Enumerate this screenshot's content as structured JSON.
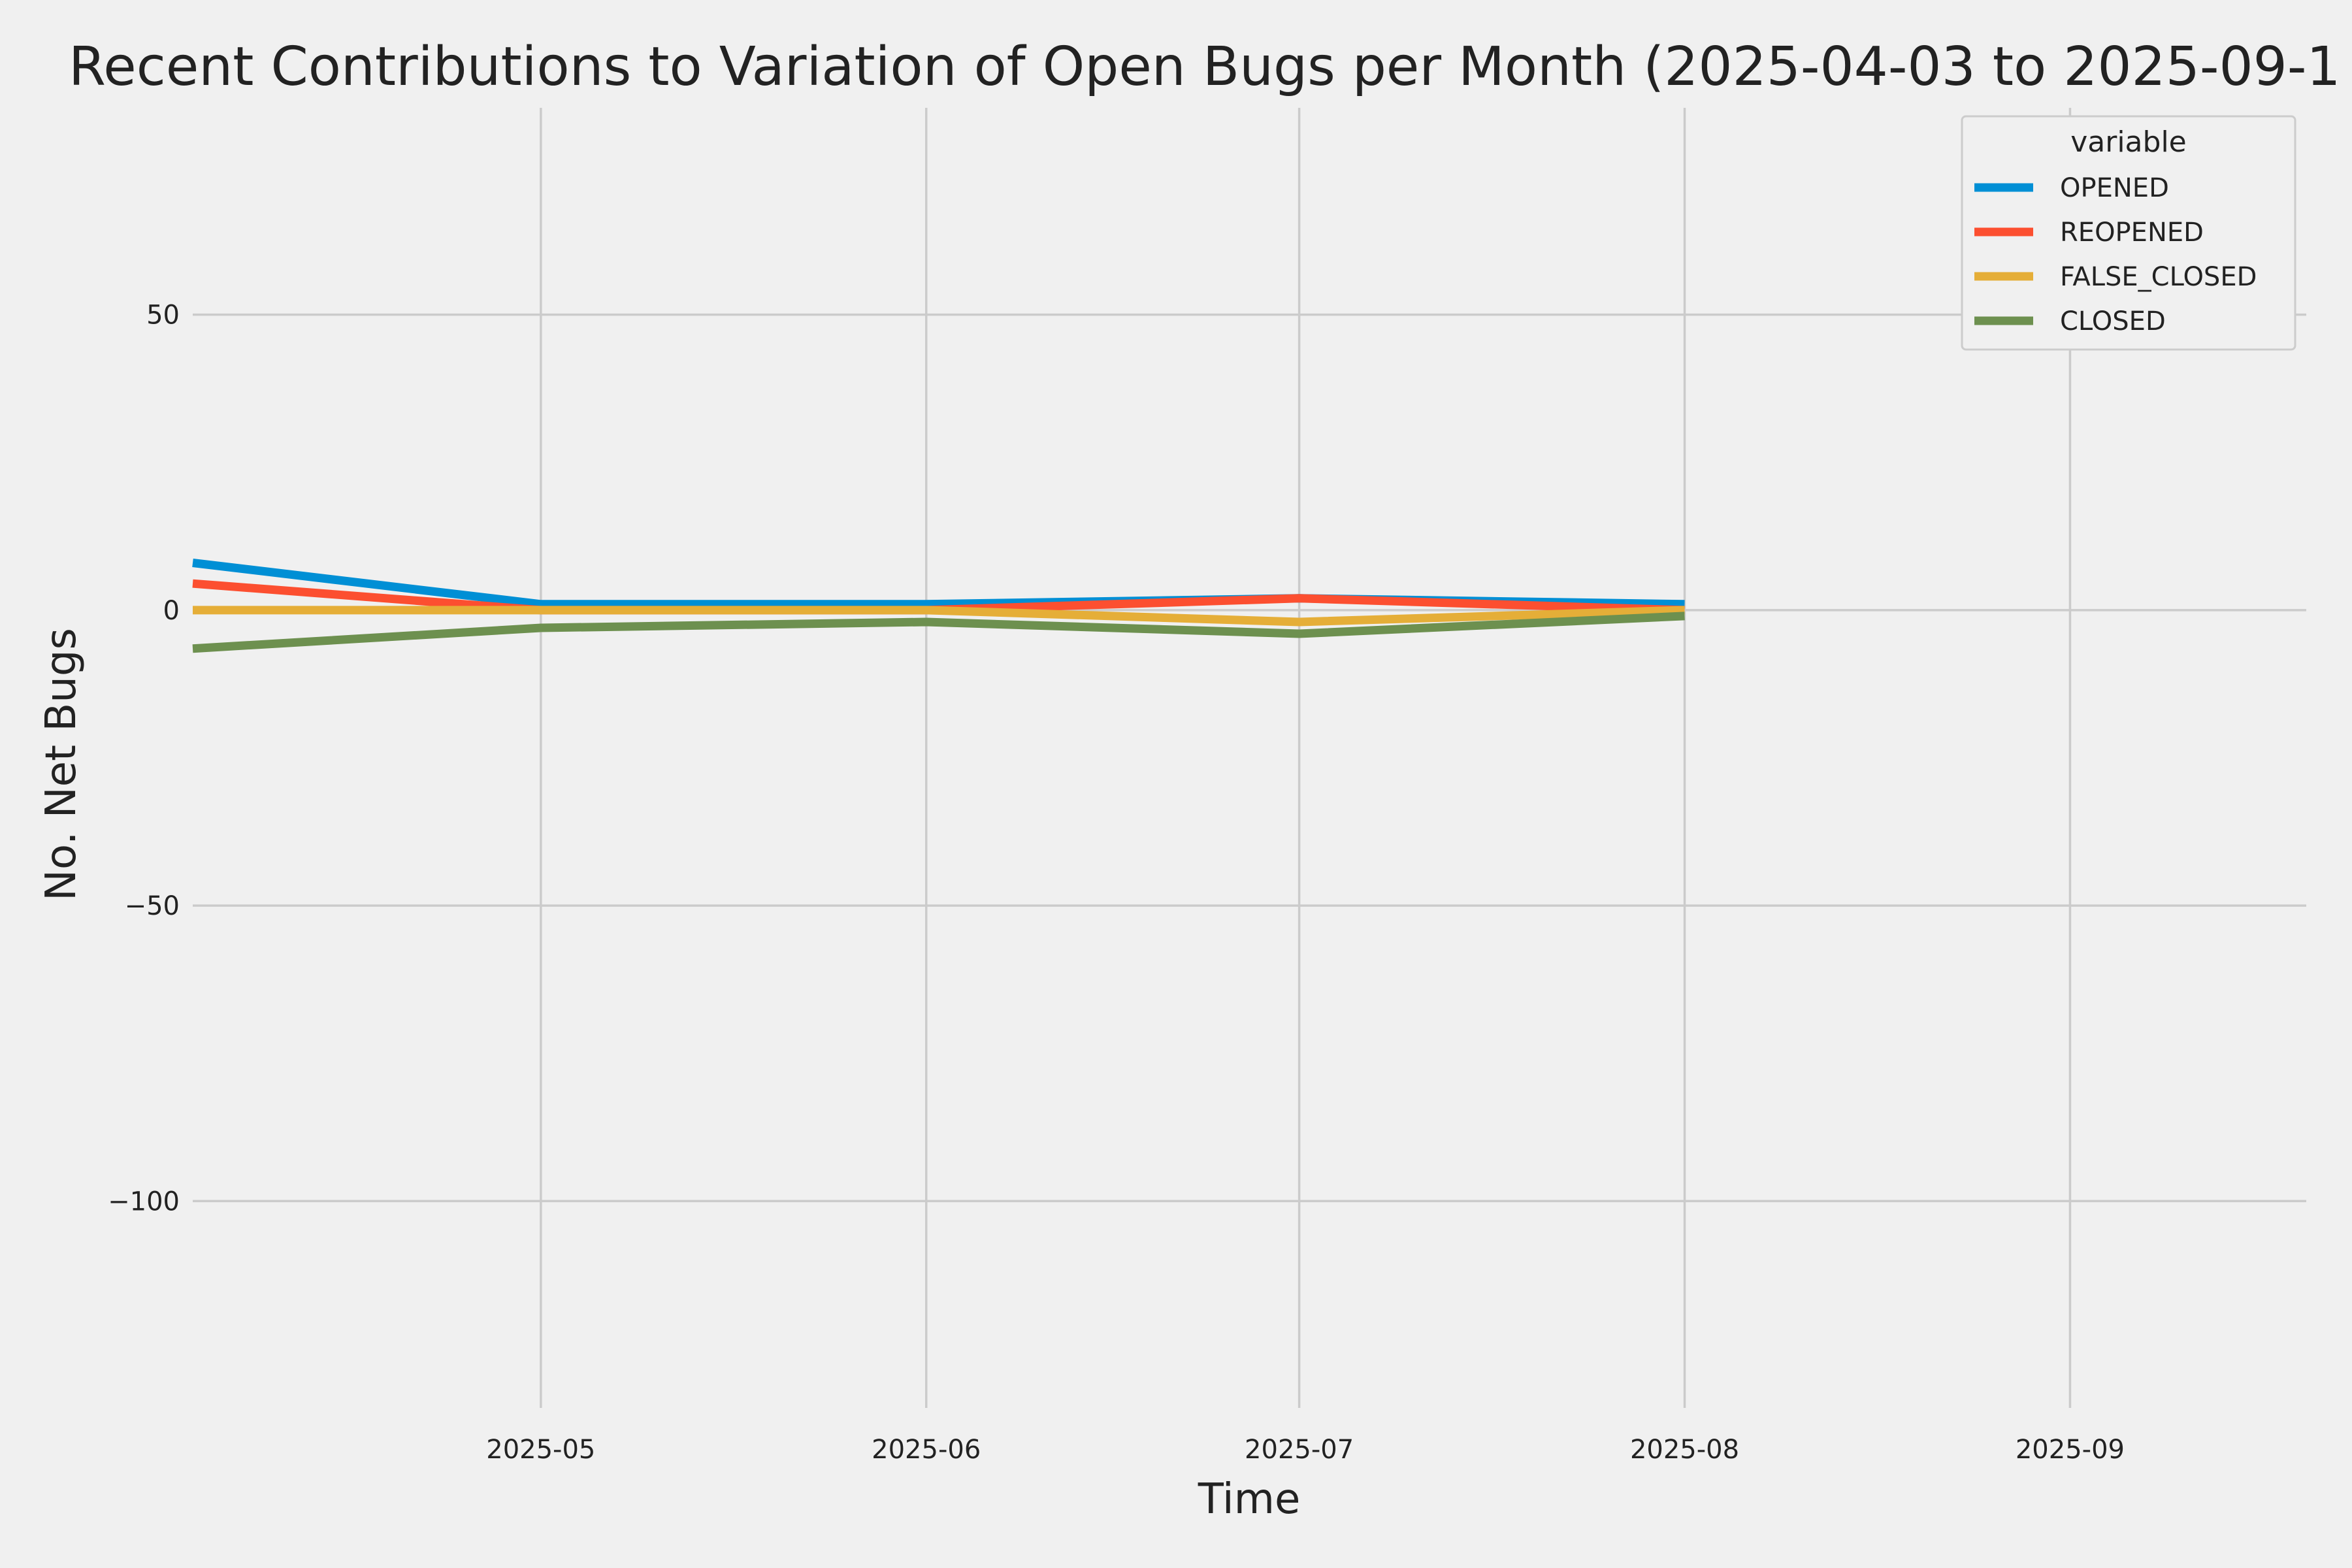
{
  "chart_data": {
    "type": "line",
    "title": "Recent Contributions to Variation of Open Bugs per Month (2025-04-03 to 2025-09-1",
    "xlabel": "Time",
    "ylabel": "No. Net Bugs",
    "x": [
      "2025-04-03",
      "2025-05-01",
      "2025-06-01",
      "2025-07-01",
      "2025-08-01"
    ],
    "xlim": [
      "2025-04-03",
      "2025-09-20"
    ],
    "ylim": [
      -135,
      85
    ],
    "x_ticks": [
      "2025-05",
      "2025-06",
      "2025-07",
      "2025-08",
      "2025-09"
    ],
    "y_ticks": [
      50,
      0,
      -50,
      -100
    ],
    "y_tick_labels": [
      "50",
      "0",
      "−50",
      "−100"
    ],
    "grid": true,
    "legend": {
      "title": "variable",
      "placement": "top-right"
    },
    "series": [
      {
        "name": "OPENED",
        "color": "#008fd5",
        "values": [
          8,
          1,
          1,
          2,
          1
        ]
      },
      {
        "name": "REOPENED",
        "color": "#fc4f30",
        "values": [
          4.5,
          0,
          0,
          2,
          0
        ]
      },
      {
        "name": "FALSE_CLOSED",
        "color": "#e5ae38",
        "values": [
          0,
          0,
          0,
          -2,
          0
        ]
      },
      {
        "name": "CLOSED",
        "color": "#6d904f",
        "values": [
          -6.5,
          -3,
          -2,
          -4,
          -1
        ]
      }
    ]
  }
}
